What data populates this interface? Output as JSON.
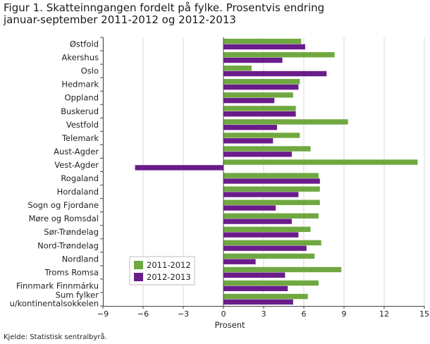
{
  "chart_data": {
    "type": "bar",
    "orientation": "horizontal",
    "title": "Figur 1. Skatteinngangen fordelt på fylke. Prosentvis endring januar-september 2011-2012 og 2012-2013",
    "title_lines": [
      "Figur 1. Skatteinngangen fordelt på fylke. Prosentvis endring",
      "januar-september 2011-2012 og 2012-2013"
    ],
    "xlabel": "Prosent",
    "ylabel": "",
    "xlim": [
      -9,
      15
    ],
    "xticks": [
      -9,
      -6,
      -3,
      0,
      3,
      6,
      9,
      12,
      15
    ],
    "grid": true,
    "legend_position": "bottom-left",
    "categories": [
      "Østfold",
      "Akershus",
      "Oslo",
      "Hedmark",
      "Oppland",
      "Buskerud",
      "Vestfold",
      "Telemark",
      "Aust-Agder",
      "Vest-Agder",
      "Rogaland",
      "Hordaland",
      "Sogn og Fjordane",
      "Møre og Romsdal",
      "Sør-Trøndelag",
      "Nord-Trøndelag",
      "Nordland",
      "Troms Romsa",
      "Finnmark Finnmárku",
      "Sum fylker u/kontinentalsokkelen"
    ],
    "category_lines": [
      [
        "Østfold"
      ],
      [
        "Akershus"
      ],
      [
        "Oslo"
      ],
      [
        "Hedmark"
      ],
      [
        "Oppland"
      ],
      [
        "Buskerud"
      ],
      [
        "Vestfold"
      ],
      [
        "Telemark"
      ],
      [
        "Aust-Agder"
      ],
      [
        "Vest-Agder"
      ],
      [
        "Rogaland"
      ],
      [
        "Hordaland"
      ],
      [
        "Sogn og Fjordane"
      ],
      [
        "Møre og Romsdal"
      ],
      [
        "Sør-Trøndelag"
      ],
      [
        "Nord-Trøndelag"
      ],
      [
        "Nordland"
      ],
      [
        "Troms Romsa"
      ],
      [
        "Finnmark Finnmárku"
      ],
      [
        "Sum fylker",
        "u/kontinentalsokkelen"
      ]
    ],
    "series": [
      {
        "name": "2011-2012",
        "color": "#6fa840",
        "values": [
          5.8,
          8.3,
          2.1,
          5.7,
          5.2,
          5.4,
          9.3,
          5.7,
          6.5,
          14.5,
          7.1,
          7.2,
          7.2,
          7.1,
          6.5,
          7.3,
          6.8,
          8.8,
          7.1,
          6.3
        ]
      },
      {
        "name": "2012-2013",
        "color": "#6a1c8a",
        "values": [
          6.1,
          4.4,
          7.7,
          5.6,
          3.8,
          5.4,
          4.0,
          3.7,
          5.1,
          -6.6,
          7.2,
          5.6,
          3.9,
          5.1,
          5.6,
          6.2,
          2.4,
          4.6,
          4.8,
          5.2
        ]
      }
    ]
  },
  "source_note": "Kjelde: Statistisk sentralbyrå.",
  "colors": {
    "series_2011_2012": "#6fa840",
    "series_2012_2013": "#6a1c8a",
    "grid": "#d9d9d9",
    "axis": "#444444"
  }
}
